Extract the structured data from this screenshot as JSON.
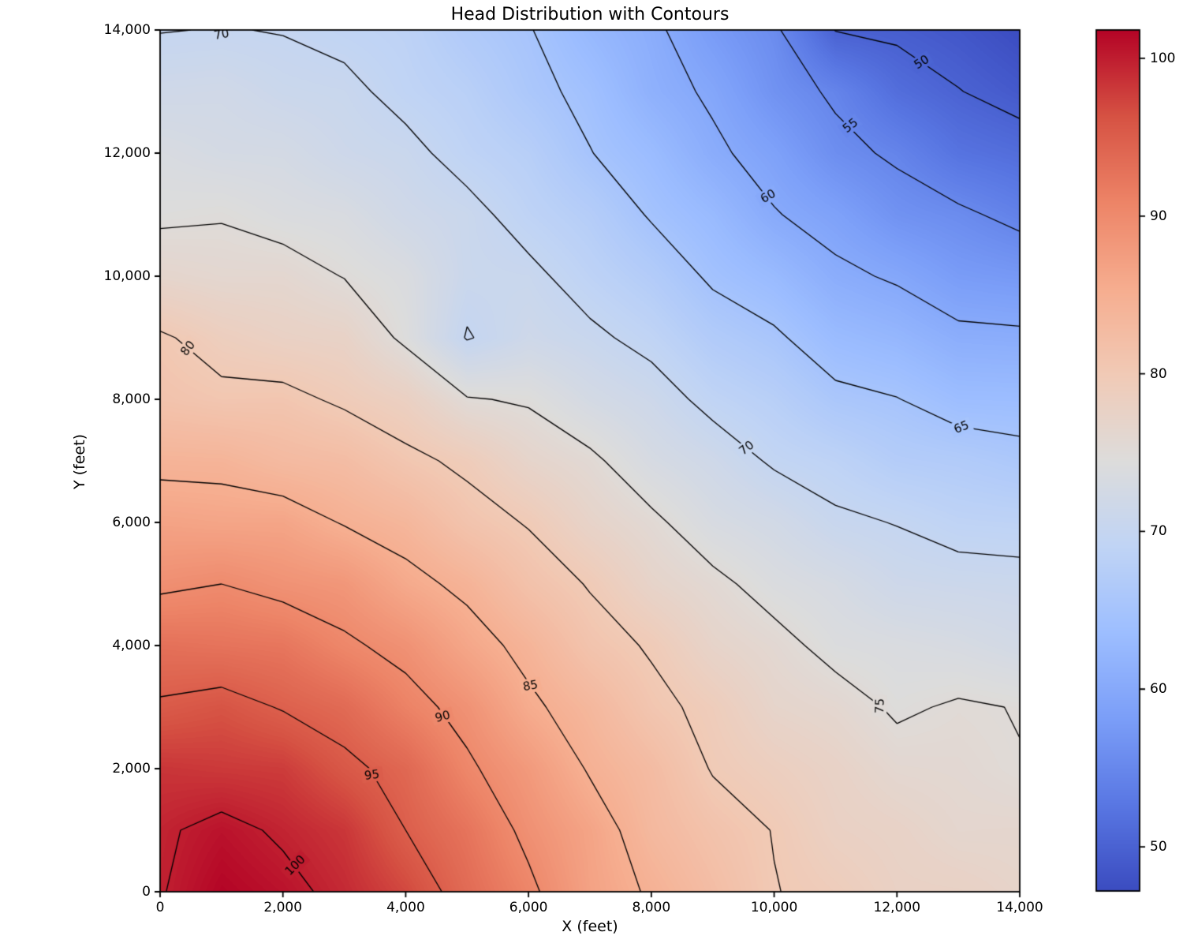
{
  "title": "Head Distribution with Contours",
  "axes": {
    "x_label": "X (feet)",
    "y_label": "Y (feet)"
  },
  "chart_data": {
    "type": "contour",
    "title": "Head Distribution with Contours",
    "xlabel": "X (feet)",
    "ylabel": "Y (feet)",
    "x_range": [
      0,
      14000
    ],
    "y_range": [
      0,
      14000
    ],
    "grid": false,
    "x": [
      0,
      1000,
      2000,
      3000,
      4000,
      5000,
      6000,
      7000,
      8000,
      9000,
      10000,
      11000,
      12000,
      13000,
      14000
    ],
    "y": [
      0,
      1000,
      2000,
      3000,
      4000,
      5000,
      6000,
      7000,
      8000,
      9000,
      10000,
      11000,
      12000,
      13000,
      14000
    ],
    "z": [
      [
        99.8,
        101.8,
        100.8,
        99.2,
        97.0,
        93.6,
        90.7,
        86.9,
        84.6,
        82.4,
        80.1,
        79.2,
        77.9,
        77.8,
        77.0
      ],
      [
        99.6,
        100.8,
        99.6,
        98.3,
        95.0,
        92.6,
        89.2,
        86.6,
        83.3,
        81.4,
        79.9,
        78.0,
        77.5,
        76.4,
        76.5
      ],
      [
        98.4,
        98.1,
        97.9,
        95.7,
        94.0,
        90.5,
        88.0,
        84.7,
        82.7,
        79.8,
        78.6,
        77.5,
        76.1,
        75.9,
        75.1
      ],
      [
        95.4,
        96.1,
        94.8,
        93.7,
        91.1,
        89.0,
        85.6,
        83.5,
        80.8,
        79.2,
        76.9,
        76.2,
        74.6,
        75.3,
        74.9
      ],
      [
        93.0,
        92.7,
        92.4,
        90.5,
        89.1,
        86.3,
        84.1,
        81.2,
        79.7,
        77.1,
        75.9,
        74.1,
        73.7,
        73.2,
        72.4
      ],
      [
        89.4,
        90.0,
        89.0,
        88.4,
        85.9,
        84.3,
        81.6,
        79.8,
        77.1,
        75.7,
        73.9,
        73.0,
        71.5,
        71.2,
        71.0
      ],
      [
        86.8,
        86.5,
        86.5,
        84.8,
        83.7,
        81.2,
        79.8,
        77.2,
        75.6,
        73.3,
        72.3,
        70.5,
        69.9,
        68.9,
        68.7
      ],
      [
        84.2,
        84.1,
        83.0,
        82.5,
        80.7,
        79.4,
        76.9,
        75.6,
        73.1,
        71.7,
        69.6,
        68.7,
        67.2,
        66.8,
        66.0
      ],
      [
        81.3,
        80.7,
        80.8,
        79.5,
        78.2,
        75.2,
        74.7,
        72.7,
        71.4,
        69.1,
        67.8,
        65.8,
        65.1,
        63.6,
        63.5
      ],
      [
        80.4,
        78.8,
        77.9,
        77.5,
        74.4,
        69.8,
        71.6,
        70.6,
        69.1,
        66.8,
        65.5,
        63.2,
        62.3,
        60.8,
        60.6
      ],
      [
        76.7,
        76.2,
        76.2,
        74.9,
        73.8,
        70.9,
        70.7,
        68.7,
        67.0,
        64.5,
        63.0,
        60.7,
        59.6,
        57.9,
        57.4
      ],
      [
        74.5,
        74.8,
        73.9,
        73.5,
        71.8,
        70.9,
        68.8,
        67.3,
        64.7,
        62.9,
        60.2,
        58.7,
        56.5,
        55.6,
        54.1
      ],
      [
        73.5,
        72.8,
        72.7,
        71.4,
        70.8,
        68.9,
        67.7,
        65.1,
        63.3,
        60.6,
        58.7,
        55.9,
        54.5,
        52.2,
        51.4
      ],
      [
        71.8,
        72.0,
        71.0,
        70.7,
        69.1,
        68.0,
        65.9,
        64.2,
        61.3,
        59.5,
        56.5,
        54.5,
        51.5,
        50.1,
        48.9
      ],
      [
        69.9,
        70.1,
        69.9,
        69.2,
        68.6,
        66.6,
        65.2,
        62.6,
        60.7,
        57.8,
        55.6,
        49.9,
        49.5,
        48.6,
        47.2
      ]
    ],
    "levels": [
      50,
      55,
      60,
      65,
      70,
      75,
      80,
      85,
      90,
      95,
      100
    ],
    "vmin": 47.2,
    "vmax": 101.8,
    "colormap": "coolwarm",
    "colormap_stops": [
      [
        0.0,
        "#3b4cc0"
      ],
      [
        0.1,
        "#5977e3"
      ],
      [
        0.2,
        "#7b9ef8"
      ],
      [
        0.3,
        "#9dbeff"
      ],
      [
        0.4,
        "#c0d4f5"
      ],
      [
        0.5,
        "#dddcdb"
      ],
      [
        0.6,
        "#f1cab6"
      ],
      [
        0.7,
        "#f6ad8f"
      ],
      [
        0.8,
        "#ed8467"
      ],
      [
        0.9,
        "#d65243"
      ],
      [
        1.0,
        "#b40426"
      ]
    ],
    "contour_color": "#000000",
    "x_ticks": [
      {
        "value": 0,
        "label": "0"
      },
      {
        "value": 2000,
        "label": "2,000"
      },
      {
        "value": 4000,
        "label": "4,000"
      },
      {
        "value": 6000,
        "label": "6,000"
      },
      {
        "value": 8000,
        "label": "8,000"
      },
      {
        "value": 10000,
        "label": "10,000"
      },
      {
        "value": 12000,
        "label": "12,000"
      },
      {
        "value": 14000,
        "label": "14,000"
      }
    ],
    "y_ticks": [
      {
        "value": 0,
        "label": "0"
      },
      {
        "value": 2000,
        "label": "2,000"
      },
      {
        "value": 4000,
        "label": "4,000"
      },
      {
        "value": 6000,
        "label": "6,000"
      },
      {
        "value": 8000,
        "label": "8,000"
      },
      {
        "value": 10000,
        "label": "10,000"
      },
      {
        "value": 12000,
        "label": "12,000"
      },
      {
        "value": 14000,
        "label": "14,000"
      }
    ],
    "colorbar": {
      "ticks": [
        {
          "value": 50,
          "label": "50"
        },
        {
          "value": 60,
          "label": "60"
        },
        {
          "value": 70,
          "label": "70"
        },
        {
          "value": 80,
          "label": "80"
        },
        {
          "value": 90,
          "label": "90"
        },
        {
          "value": 100,
          "label": "100"
        }
      ]
    },
    "contour_labels": [
      {
        "text": "100",
        "level": 100,
        "x": 2200,
        "y": 430,
        "rot": -45
      },
      {
        "text": "95",
        "level": 95,
        "x": 3450,
        "y": 1900,
        "rot": -8
      },
      {
        "text": "90",
        "level": 90,
        "x": 4600,
        "y": 2850,
        "rot": -15
      },
      {
        "text": "85",
        "level": 85,
        "x": 6030,
        "y": 3350,
        "rot": -10
      },
      {
        "text": "80",
        "level": 80,
        "x": 450,
        "y": 8830,
        "rot": -52
      },
      {
        "text": "75",
        "level": 75,
        "x": 11720,
        "y": 3020,
        "rot": -88
      },
      {
        "text": "70",
        "level": 70,
        "x": 1000,
        "y": 13930,
        "rot": -10
      },
      {
        "text": "70",
        "level": 70,
        "x": 9550,
        "y": 7210,
        "rot": -38
      },
      {
        "text": "65",
        "level": 65,
        "x": 13050,
        "y": 7550,
        "rot": -22
      },
      {
        "text": "60",
        "level": 60,
        "x": 9900,
        "y": 11300,
        "rot": -30
      },
      {
        "text": "55",
        "level": 55,
        "x": 11240,
        "y": 12450,
        "rot": -38
      },
      {
        "text": "50",
        "level": 50,
        "x": 12400,
        "y": 13480,
        "rot": -32
      }
    ]
  }
}
